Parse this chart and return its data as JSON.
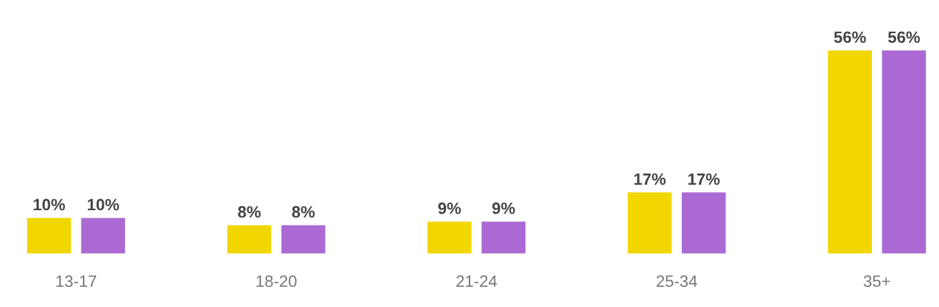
{
  "chart_data": {
    "type": "bar",
    "categories": [
      "13-17",
      "18-20",
      "21-24",
      "25-34",
      "35+"
    ],
    "series": [
      {
        "color": "#f2d600",
        "values": [
          10,
          8,
          9,
          17,
          56
        ],
        "value_labels": [
          "10%",
          "8%",
          "9%",
          "17%",
          "56%"
        ]
      },
      {
        "color": "#ab6ad3",
        "values": [
          10,
          8,
          9,
          17,
          56
        ],
        "value_labels": [
          "10%",
          "8%",
          "9%",
          "17%",
          "56%"
        ]
      }
    ],
    "grid": false,
    "legend": false
  }
}
